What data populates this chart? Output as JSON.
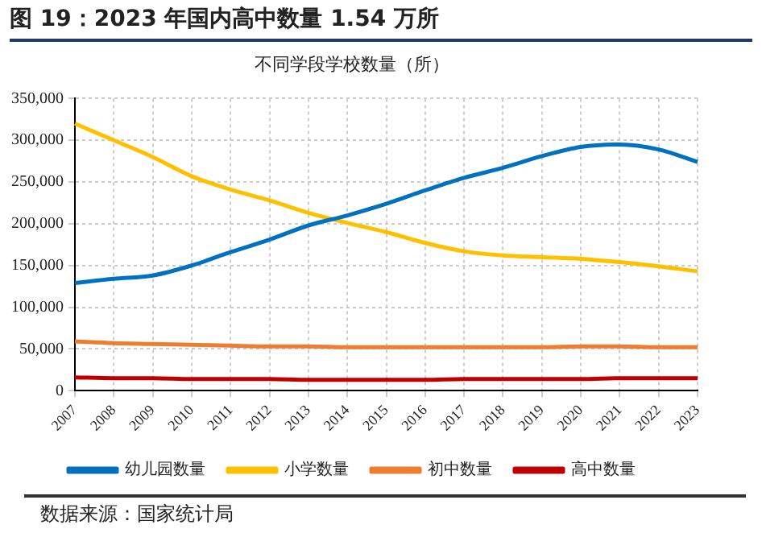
{
  "chart_data": {
    "type": "line",
    "title": "图 19：2023 年国内高中数量 1.54 万所",
    "subtitle": "不同学段学校数量（所）",
    "annotations": [
      "数据来源：国家统计局"
    ],
    "categories": [
      "2007",
      "2008",
      "2009",
      "2010",
      "2011",
      "2012",
      "2013",
      "2014",
      "2015",
      "2016",
      "2017",
      "2018",
      "2019",
      "2020",
      "2021",
      "2022",
      "2023"
    ],
    "series": [
      {
        "name": "幼儿园数量",
        "color": "#0070c0",
        "values": [
          129000,
          134000,
          138000,
          150000,
          166000,
          181000,
          198000,
          210000,
          224000,
          240000,
          255000,
          267000,
          281000,
          292000,
          295000,
          289000,
          274000
        ]
      },
      {
        "name": "小学数量",
        "color": "#ffc000",
        "values": [
          320000,
          300000,
          280000,
          257000,
          241000,
          228000,
          213000,
          201000,
          190000,
          177000,
          167000,
          162000,
          160000,
          158000,
          154000,
          149000,
          143000
        ]
      },
      {
        "name": "初中数量",
        "color": "#ed7d31",
        "values": [
          59000,
          57000,
          56000,
          55000,
          54000,
          53000,
          53000,
          52000,
          52000,
          52000,
          52000,
          52000,
          52000,
          53000,
          53000,
          52000,
          52000
        ]
      },
      {
        "name": "高中数量",
        "color": "#c00000",
        "values": [
          16000,
          15000,
          15000,
          14000,
          14000,
          14000,
          13000,
          13000,
          13000,
          13000,
          14000,
          14000,
          14000,
          14000,
          15000,
          15000,
          15000
        ]
      }
    ],
    "ylim": [
      0,
      350000
    ],
    "yticks": [
      0,
      {
        "value": 50000,
        "label": "50,000"
      },
      {
        "value": 100000,
        "label": "100,000"
      },
      {
        "value": 150000,
        "label": "150,000"
      },
      {
        "value": 200000,
        "label": "200,000"
      },
      {
        "value": 250000,
        "label": "250,000"
      },
      {
        "value": 300000,
        "label": "300,000"
      },
      {
        "value": 350000,
        "label": "350,000"
      }
    ],
    "grid": true,
    "legend": "bottom",
    "marker": "none",
    "line_style": "solid"
  }
}
